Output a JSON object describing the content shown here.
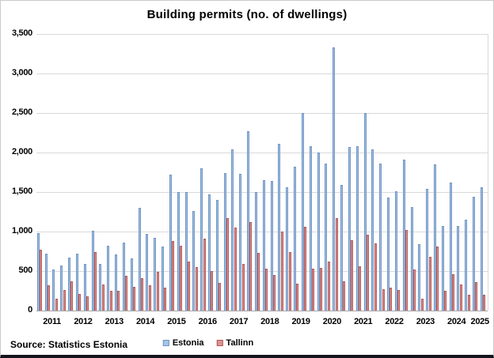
{
  "source_note": "Source: Statistics Estonia",
  "colors": {
    "estonia_fill": "#a7c4e4",
    "estonia_edge": "#6f94c4",
    "tallinn_fill": "#d99694",
    "tallinn_edge": "#b65754",
    "gridline": "#d9d9d9",
    "axis_line": "#a6a6a6"
  },
  "chart_data": {
    "type": "bar",
    "title": "Building permits (no. of dwellings)",
    "xlabel": "",
    "ylabel": "",
    "ylim": [
      0,
      3500
    ],
    "ytick_values": [
      3500,
      3000,
      2500,
      2000,
      1500,
      1000,
      500,
      0
    ],
    "ytick_labels": [
      "3,500",
      "3,000",
      "2,500",
      "2,000",
      "1,500",
      "1,000",
      "500",
      "0"
    ],
    "grid": true,
    "legend_position": "bottom",
    "x_year_labels": [
      "2011",
      "2012",
      "2013",
      "2014",
      "2015",
      "2016",
      "2017",
      "2018",
      "2019",
      "2020",
      "2021",
      "2022",
      "2023",
      "2024",
      "2025"
    ],
    "quarters_per_year": [
      4,
      4,
      4,
      4,
      4,
      4,
      4,
      4,
      4,
      4,
      4,
      4,
      4,
      4,
      2
    ],
    "categories": [
      "2011 Q1",
      "2011 Q2",
      "2011 Q3",
      "2011 Q4",
      "2012 Q1",
      "2012 Q2",
      "2012 Q3",
      "2012 Q4",
      "2013 Q1",
      "2013 Q2",
      "2013 Q3",
      "2013 Q4",
      "2014 Q1",
      "2014 Q2",
      "2014 Q3",
      "2014 Q4",
      "2015 Q1",
      "2015 Q2",
      "2015 Q3",
      "2015 Q4",
      "2016 Q1",
      "2016 Q2",
      "2016 Q3",
      "2016 Q4",
      "2017 Q1",
      "2017 Q2",
      "2017 Q3",
      "2017 Q4",
      "2018 Q1",
      "2018 Q2",
      "2018 Q3",
      "2018 Q4",
      "2019 Q1",
      "2019 Q2",
      "2019 Q3",
      "2019 Q4",
      "2020 Q1",
      "2020 Q2",
      "2020 Q3",
      "2020 Q4",
      "2021 Q1",
      "2021 Q2",
      "2021 Q3",
      "2021 Q4",
      "2022 Q1",
      "2022 Q2",
      "2022 Q3",
      "2022 Q4",
      "2023 Q1",
      "2023 Q2",
      "2023 Q3",
      "2023 Q4",
      "2024 Q1",
      "2024 Q2",
      "2024 Q3",
      "2024 Q4",
      "2025 Q1",
      "2025 Q2"
    ],
    "series": [
      {
        "name": "Estonia",
        "fill": "#a7c4e4",
        "edge": "#6f94c4",
        "values": [
          980,
          720,
          520,
          570,
          670,
          720,
          590,
          1010,
          590,
          820,
          710,
          860,
          660,
          1300,
          970,
          920,
          810,
          1720,
          1500,
          1500,
          1260,
          1800,
          1470,
          1400,
          1740,
          2040,
          1730,
          2270,
          1500,
          1650,
          1640,
          2110,
          1560,
          1820,
          2500,
          2080,
          2000,
          1860,
          3330,
          1590,
          2070,
          2080,
          2500,
          2040,
          1860,
          1430,
          1510,
          1910,
          1310,
          840,
          1540,
          1850,
          1070,
          1620,
          1070,
          1150,
          1440,
          1560
        ]
      },
      {
        "name": "Tallinn",
        "fill": "#d99694",
        "edge": "#b65754",
        "values": [
          770,
          320,
          150,
          260,
          370,
          210,
          180,
          740,
          330,
          250,
          250,
          440,
          300,
          410,
          320,
          490,
          290,
          880,
          820,
          620,
          550,
          910,
          500,
          350,
          1170,
          1050,
          590,
          1120,
          730,
          530,
          450,
          1000,
          740,
          340,
          1060,
          530,
          540,
          620,
          1170,
          370,
          890,
          560,
          960,
          850,
          270,
          290,
          260,
          1020,
          520,
          150,
          680,
          810,
          250,
          460,
          330,
          200,
          360,
          200
        ]
      }
    ]
  }
}
